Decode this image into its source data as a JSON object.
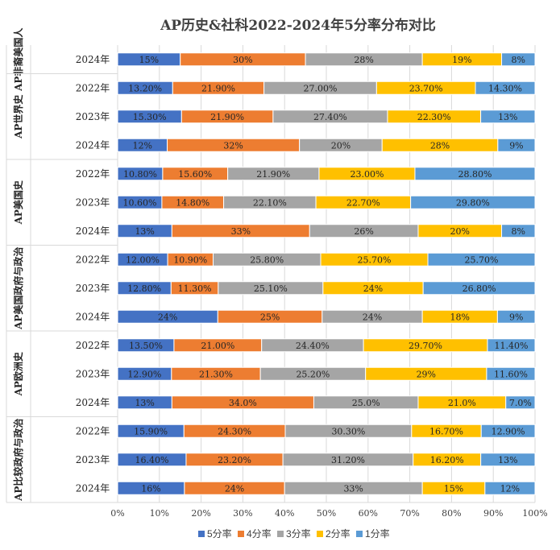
{
  "chart_data": {
    "type": "bar",
    "orientation": "horizontal",
    "stacked": true,
    "title": "AP历史&社科2022-2024年5分率分布对比",
    "xlim": [
      0,
      100
    ],
    "x_ticks": [
      "0%",
      "10%",
      "20%",
      "30%",
      "40%",
      "50%",
      "60%",
      "70%",
      "80%",
      "90%",
      "100%"
    ],
    "legend_position": "bottom",
    "series": [
      {
        "name": "5分率",
        "color": "#4472C4"
      },
      {
        "name": "4分率",
        "color": "#ED7D31"
      },
      {
        "name": "3分率",
        "color": "#A5A5A5"
      },
      {
        "name": "2分率",
        "color": "#FFC000"
      },
      {
        "name": "1分率",
        "color": "#5B9BD5"
      }
    ],
    "groups": [
      {
        "subject": "AP非裔美国人",
        "rows": [
          {
            "year": "2024年",
            "values": [
              15,
              30,
              28,
              19,
              8
            ],
            "labels": [
              "15%",
              "30%",
              "28%",
              "19%",
              "8%"
            ]
          }
        ]
      },
      {
        "subject": "AP世界史",
        "rows": [
          {
            "year": "2022年",
            "values": [
              13.2,
              21.9,
              27.0,
              23.7,
              14.3
            ],
            "labels": [
              "13.20%",
              "21.90%",
              "27.00%",
              "23.70%",
              "14.30%"
            ]
          },
          {
            "year": "2023年",
            "values": [
              15.3,
              21.9,
              27.4,
              22.3,
              13
            ],
            "labels": [
              "15.30%",
              "21.90%",
              "27.40%",
              "22.30%",
              "13%"
            ]
          },
          {
            "year": "2024年",
            "values": [
              12,
              32,
              20,
              28,
              9
            ],
            "labels": [
              "12%",
              "32%",
              "20%",
              "28%",
              "9%"
            ]
          }
        ]
      },
      {
        "subject": "AP美国史",
        "rows": [
          {
            "year": "2022年",
            "values": [
              10.8,
              15.6,
              21.9,
              23.0,
              28.8
            ],
            "labels": [
              "10.80%",
              "15.60%",
              "21.90%",
              "23.00%",
              "28.80%"
            ]
          },
          {
            "year": "2023年",
            "values": [
              10.6,
              14.8,
              22.1,
              22.7,
              29.8
            ],
            "labels": [
              "10.60%",
              "14.80%",
              "22.10%",
              "22.70%",
              "29.80%"
            ]
          },
          {
            "year": "2024年",
            "values": [
              13,
              33,
              26,
              20,
              8
            ],
            "labels": [
              "13%",
              "33%",
              "26%",
              "20%",
              "8%"
            ]
          }
        ]
      },
      {
        "subject": "AP美国政府与政治",
        "rows": [
          {
            "year": "2022年",
            "values": [
              12.0,
              10.9,
              25.8,
              25.7,
              25.7
            ],
            "labels": [
              "12.00%",
              "10.90%",
              "25.80%",
              "25.70%",
              "25.70%"
            ]
          },
          {
            "year": "2023年",
            "values": [
              12.8,
              11.3,
              25.1,
              24,
              26.8
            ],
            "labels": [
              "12.80%",
              "11.30%",
              "25.10%",
              "24%",
              "26.80%"
            ]
          },
          {
            "year": "2024年",
            "values": [
              24,
              25,
              24,
              18,
              9
            ],
            "labels": [
              "24%",
              "25%",
              "24%",
              "18%",
              "9%"
            ]
          }
        ]
      },
      {
        "subject": "AP欧洲史",
        "rows": [
          {
            "year": "2022年",
            "values": [
              13.5,
              21.0,
              24.4,
              29.7,
              11.4
            ],
            "labels": [
              "13.50%",
              "21.00%",
              "24.40%",
              "29.70%",
              "11.40%"
            ]
          },
          {
            "year": "2023年",
            "values": [
              12.9,
              21.3,
              25.2,
              29,
              11.6
            ],
            "labels": [
              "12.90%",
              "21.30%",
              "25.20%",
              "29%",
              "11.60%"
            ]
          },
          {
            "year": "2024年",
            "values": [
              13,
              34.0,
              25.0,
              21.0,
              7.0
            ],
            "labels": [
              "13%",
              "34.0%",
              "25.0%",
              "21.0%",
              "7.0%"
            ]
          }
        ]
      },
      {
        "subject": "AP比较政府与政治",
        "rows": [
          {
            "year": "2022年",
            "values": [
              15.9,
              24.3,
              30.3,
              16.7,
              12.9
            ],
            "labels": [
              "15.90%",
              "24.30%",
              "30.30%",
              "16.70%",
              "12.90%"
            ]
          },
          {
            "year": "2023年",
            "values": [
              16.4,
              23.2,
              31.2,
              16.2,
              13
            ],
            "labels": [
              "16.40%",
              "23.20%",
              "31.20%",
              "16.20%",
              "13%"
            ]
          },
          {
            "year": "2024年",
            "values": [
              16,
              24,
              33,
              15,
              12
            ],
            "labels": [
              "16%",
              "24%",
              "33%",
              "15%",
              "12%"
            ]
          }
        ]
      }
    ]
  }
}
